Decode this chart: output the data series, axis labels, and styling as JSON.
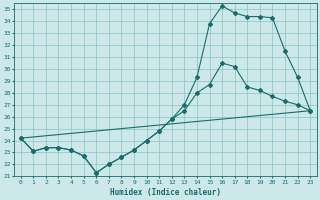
{
  "xlabel": "Humidex (Indice chaleur)",
  "bg_color": "#cce8e8",
  "grid_color": "#88c4c4",
  "line_color": "#1a6b6b",
  "xlim": [
    -0.5,
    23.5
  ],
  "ylim": [
    21,
    35.5
  ],
  "xticks": [
    0,
    1,
    2,
    3,
    4,
    5,
    6,
    7,
    8,
    9,
    10,
    11,
    12,
    13,
    14,
    15,
    16,
    17,
    18,
    19,
    20,
    21,
    22,
    23
  ],
  "yticks": [
    21,
    22,
    23,
    24,
    25,
    26,
    27,
    28,
    29,
    30,
    31,
    32,
    33,
    34,
    35
  ],
  "series1_x": [
    0,
    1,
    2,
    3,
    4,
    5,
    6,
    7,
    8,
    9,
    10,
    11,
    12,
    13,
    14,
    15,
    16,
    17,
    18,
    19,
    20,
    21,
    22,
    23
  ],
  "series1_y": [
    24.2,
    23.1,
    23.4,
    23.4,
    23.2,
    22.7,
    21.3,
    22.0,
    22.6,
    23.2,
    24.0,
    24.8,
    25.8,
    26.5,
    28.0,
    28.7,
    30.5,
    30.2,
    28.5,
    28.2,
    27.7,
    27.3,
    27.0,
    26.5
  ],
  "series2_x": [
    0,
    1,
    2,
    3,
    4,
    5,
    6,
    7,
    8,
    9,
    10,
    11,
    12,
    13,
    14,
    15,
    16,
    17,
    18,
    19,
    20,
    21,
    22,
    23
  ],
  "series2_y": [
    24.2,
    23.1,
    23.4,
    23.4,
    23.2,
    22.7,
    21.3,
    22.0,
    22.6,
    23.2,
    24.0,
    24.8,
    25.8,
    27.0,
    29.3,
    33.8,
    35.3,
    34.7,
    34.4,
    34.4,
    34.3,
    31.5,
    29.3,
    26.5
  ],
  "series3_x": [
    0,
    23
  ],
  "series3_y": [
    24.2,
    26.5
  ]
}
